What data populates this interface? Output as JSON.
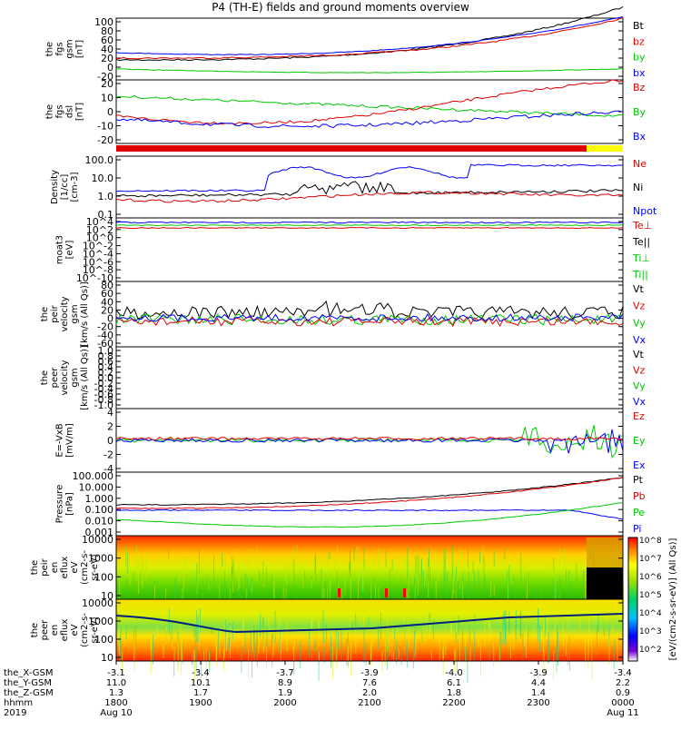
{
  "title": "P4 (TH-E) fields and ground moments overview",
  "colors": {
    "black": "#000000",
    "red": "#e00000",
    "green": "#00c800",
    "blue": "#0000ff",
    "yellow": "#ffff00",
    "spec_low": "#00b000",
    "spec_high": "#ff2000"
  },
  "chart_data": [
    {
      "type": "line",
      "ylabel": [
        "the",
        "fgs",
        "gsm",
        "[nT]"
      ],
      "yticks": [
        "100",
        "80",
        "60",
        "40",
        "20",
        "0",
        "-20"
      ],
      "ylim": [
        -20,
        100
      ],
      "legend": [
        {
          "name": "Bt",
          "color": "black"
        },
        {
          "name": "bz",
          "color": "red"
        },
        {
          "name": "by",
          "color": "green"
        },
        {
          "name": "bx",
          "color": "blue"
        }
      ]
    },
    {
      "type": "line",
      "ylabel": [
        "the",
        "fgs",
        "dsl",
        "[nT]"
      ],
      "yticks": [
        "20",
        "10",
        "0",
        "-10",
        "-20"
      ],
      "ylim": [
        -25,
        25
      ],
      "legend": [
        {
          "name": "Bz",
          "color": "red"
        },
        {
          "name": "By",
          "color": "green"
        },
        {
          "name": "Bx",
          "color": "blue"
        }
      ]
    },
    {
      "type": "line",
      "ylabel": [
        "Density",
        "[1/cc]",
        "[cm-3]"
      ],
      "yticks": [
        "100.0",
        "10.0",
        "1.0",
        "0.1"
      ],
      "legend": [
        {
          "name": "Ne",
          "color": "red"
        },
        {
          "name": "Ni",
          "color": "black"
        },
        {
          "name": "Npot",
          "color": "blue"
        }
      ]
    },
    {
      "type": "line",
      "ylabel": [
        "moat3",
        "[eV]"
      ],
      "yticks": [
        "10^4",
        "10^2",
        "10^0",
        "10^-2",
        "10^-4",
        "10^-6",
        "10^-8",
        "10^-10"
      ],
      "legend": [
        {
          "name": "Te⊥",
          "color": "red"
        },
        {
          "name": "Te||",
          "color": "black"
        },
        {
          "name": "Ti⊥",
          "color": "green"
        },
        {
          "name": "Ti||",
          "color": "green"
        }
      ]
    },
    {
      "type": "line",
      "ylabel": [
        "the",
        "peir",
        "velocity",
        "gsm",
        "[km/s (All Qs)]"
      ],
      "yticks": [
        "80",
        "60",
        "40",
        "20",
        "0",
        "-20",
        "-40",
        "-60"
      ],
      "ylim": [
        -60,
        80
      ],
      "legend": [
        {
          "name": "Vt",
          "color": "black"
        },
        {
          "name": "Vz",
          "color": "red"
        },
        {
          "name": "Vy",
          "color": "green"
        },
        {
          "name": "Vx",
          "color": "blue"
        }
      ]
    },
    {
      "type": "line",
      "ylabel": [
        "the",
        "peer",
        "velocity",
        "gsm",
        "[km/s (All Qs)]"
      ],
      "yticks": [
        "1.0",
        "0.8",
        "0.6",
        "0.4",
        "0.2",
        "0.0",
        "-0.2",
        "-0.4",
        "-0.6",
        "-0.8",
        "-1.0"
      ],
      "ylim": [
        -1,
        1
      ],
      "legend": [
        {
          "name": "Vt",
          "color": "black"
        },
        {
          "name": "Vz",
          "color": "red"
        },
        {
          "name": "Vy",
          "color": "green"
        },
        {
          "name": "Vx",
          "color": "blue"
        }
      ]
    },
    {
      "type": "line",
      "ylabel": [
        "E=-VxB",
        "[mV/m]"
      ],
      "yticks": [
        "4",
        "2",
        "0",
        "-2",
        "-4"
      ],
      "ylim": [
        -5,
        5
      ],
      "legend": [
        {
          "name": "Ez",
          "color": "red"
        },
        {
          "name": "Ey",
          "color": "green"
        },
        {
          "name": "Ex",
          "color": "blue"
        }
      ]
    },
    {
      "type": "line",
      "ylabel": [
        "Pressure",
        "[nPa]"
      ],
      "yticks": [
        "100.000",
        "10.000",
        "1.000",
        "0.100",
        "0.010",
        "0.001"
      ],
      "legend": [
        {
          "name": "Pt",
          "color": "black"
        },
        {
          "name": "Pb",
          "color": "red"
        },
        {
          "name": "Pe",
          "color": "green"
        },
        {
          "name": "Pi",
          "color": "blue"
        }
      ]
    },
    {
      "type": "heatmap",
      "ylabel": [
        "the",
        "peir",
        "en",
        "eflux",
        "eV",
        "(cm2-s-",
        "sr-eV)"
      ],
      "yticks": [
        "10000",
        "1000",
        "100",
        "10"
      ]
    },
    {
      "type": "heatmap",
      "ylabel": [
        "the",
        "peer",
        "en",
        "eflux",
        "eV",
        "(cm2-s-",
        "sr-eV)"
      ],
      "yticks": [
        "10000",
        "1000",
        "100",
        "10"
      ]
    }
  ],
  "colorbar": {
    "ticks": [
      "10^8",
      "10^7",
      "10^6",
      "10^5",
      "10^4",
      "10^3",
      "10^2"
    ],
    "label": "[eV/(cm2-s-sr-eV)] (All Qs)]"
  },
  "xaxis": {
    "row_labels": [
      "the_X-GSM",
      "the_Y-GSM",
      "the_Z-GSM",
      "hhmm",
      "2019"
    ],
    "columns": [
      [
        "-3.1",
        "11.0",
        "1.3",
        "1800",
        "Aug 10"
      ],
      [
        "-3.4",
        "10.1",
        "1.7",
        "1900",
        ""
      ],
      [
        "-3.7",
        "8.9",
        "1.9",
        "2000",
        ""
      ],
      [
        "-3.9",
        "7.6",
        "2.0",
        "2100",
        ""
      ],
      [
        "-4.0",
        "6.1",
        "1.8",
        "2200",
        ""
      ],
      [
        "-3.9",
        "4.4",
        "1.4",
        "2300",
        ""
      ],
      [
        "-3.4",
        "2.2",
        "0.9",
        "0000",
        "Aug 11"
      ]
    ]
  }
}
